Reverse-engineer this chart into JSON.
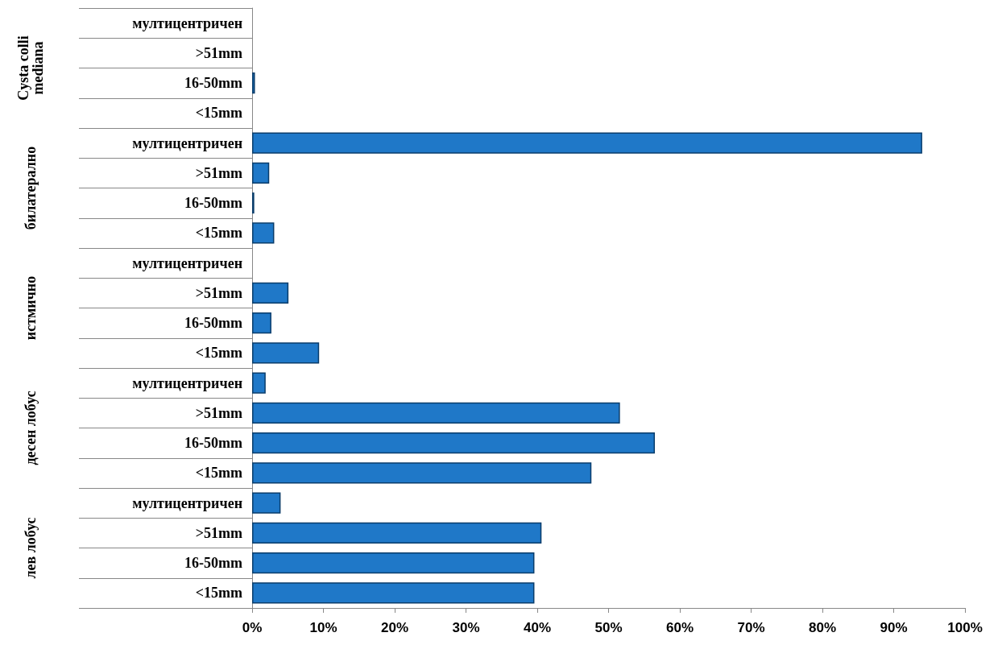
{
  "chart_data": {
    "type": "bar",
    "orientation": "horizontal",
    "categories": [
      "мултицентричен",
      ">51mm",
      "16-50mm",
      "<15mm",
      "мултицентричен",
      ">51mm",
      "16-50mm",
      "<15mm",
      "мултицентричен",
      ">51mm",
      "16-50mm",
      "<15mm",
      "мултицентричен",
      ">51mm",
      "16-50mm",
      "<15mm",
      "мултицентричен",
      ">51mm",
      "16-50mm",
      "<15mm"
    ],
    "values": [
      0,
      0,
      0.4,
      0,
      94,
      2.4,
      0.3,
      3.1,
      0,
      5.1,
      2.7,
      9.4,
      1.9,
      51.6,
      56.5,
      47.6,
      4.0,
      40.6,
      39.6,
      39.6
    ],
    "color": "#1f78c8",
    "xlim": [
      0,
      100
    ],
    "xticks": [
      {
        "value": 0,
        "label": "0%"
      },
      {
        "value": 10,
        "label": "10%"
      },
      {
        "value": 20,
        "label": "20%"
      },
      {
        "value": 30,
        "label": "30%"
      },
      {
        "value": 40,
        "label": "40%"
      },
      {
        "value": 50,
        "label": "50%"
      },
      {
        "value": 60,
        "label": "60%"
      },
      {
        "value": 70,
        "label": "70%"
      },
      {
        "value": 80,
        "label": "80%"
      },
      {
        "value": 90,
        "label": "90%"
      },
      {
        "value": 100,
        "label": "100%"
      }
    ],
    "annotations": [
      "Cysta colli\nmediana",
      "билатерално",
      "истмично",
      "десен лобус",
      "лев лобус"
    ],
    "grid": false
  }
}
